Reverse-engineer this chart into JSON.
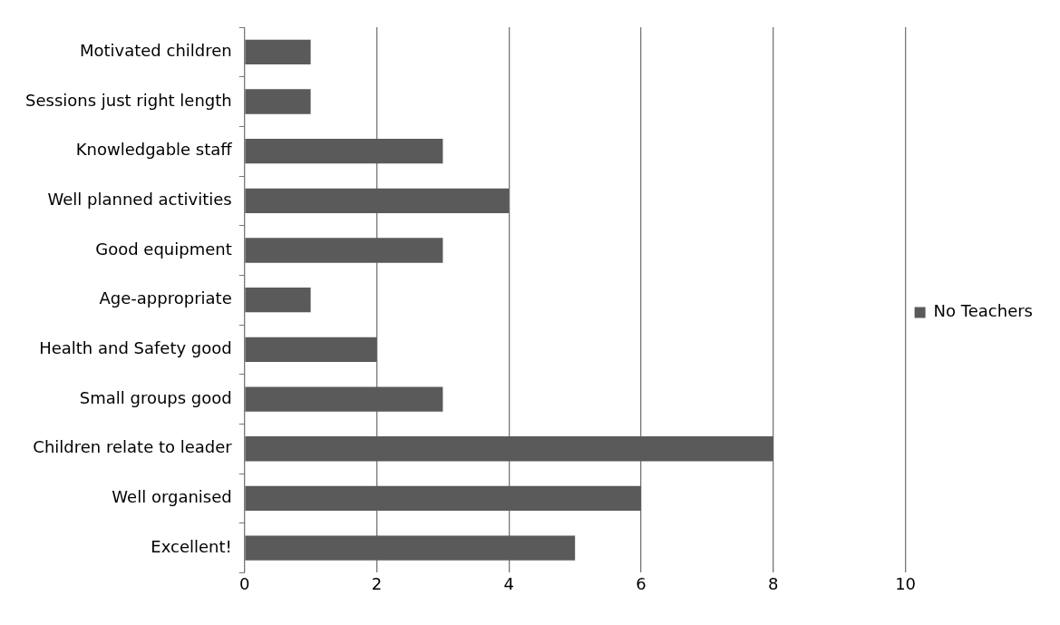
{
  "chart_data": {
    "type": "bar",
    "orientation": "horizontal",
    "categories": [
      "Motivated children",
      "Sessions just right length",
      "Knowledgable staff",
      "Well planned activities",
      "Good equipment",
      "Age-appropriate",
      "Health and Safety good",
      "Small groups good",
      "Children relate to leader",
      "Well organised",
      "Excellent!"
    ],
    "series": [
      {
        "name": "No Teachers",
        "color": "#5a5a5a",
        "values": [
          1,
          1,
          3,
          4,
          3,
          1,
          2,
          3,
          8,
          6,
          5
        ]
      }
    ],
    "xlim": [
      0,
      10
    ],
    "xticks": [
      0,
      2,
      4,
      6,
      8,
      10
    ],
    "grid": "x",
    "legend": "right"
  }
}
